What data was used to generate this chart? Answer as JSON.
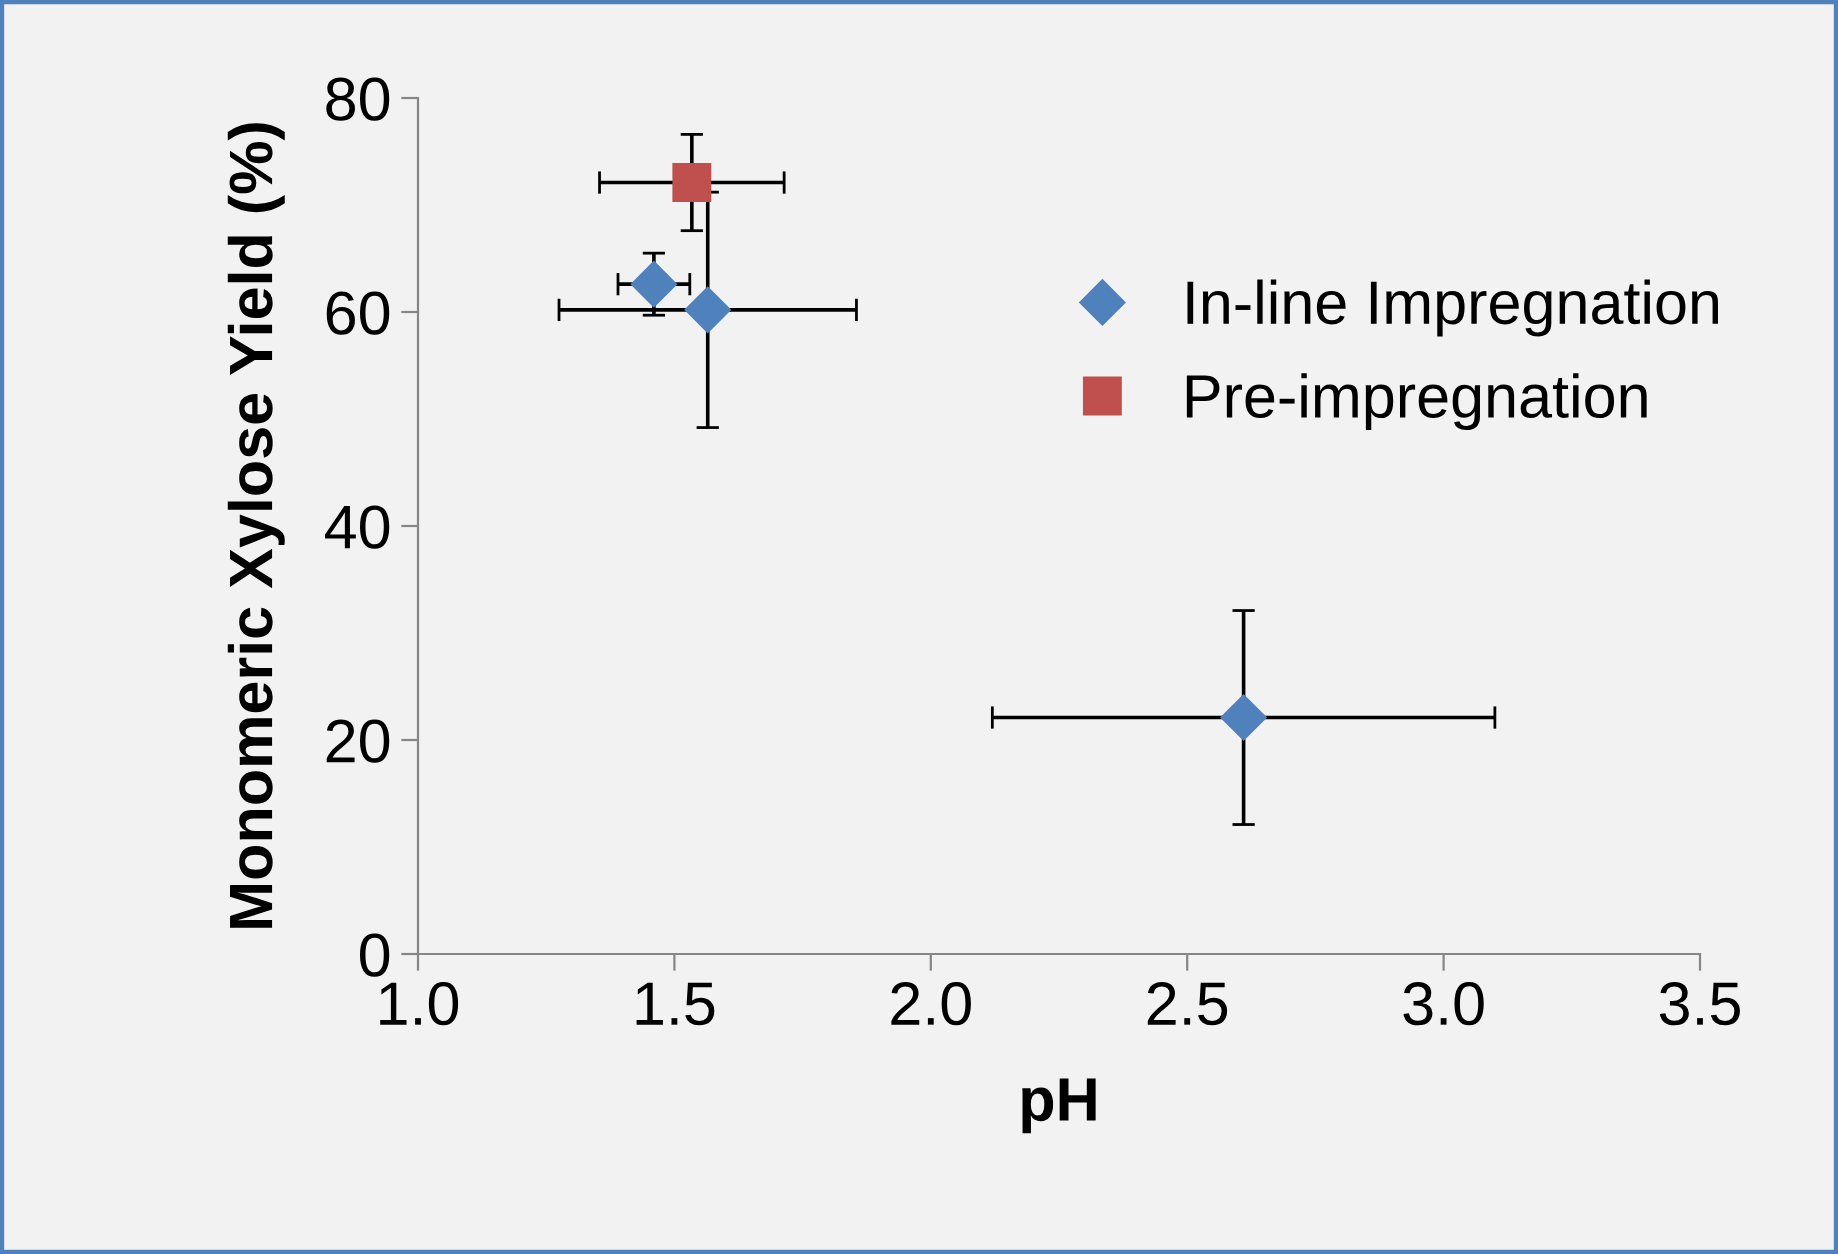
{
  "chart_data": {
    "type": "scatter",
    "xlabel": "pH",
    "ylabel": "Monomeric Xylose Yield (%)",
    "xlim": [
      1.0,
      3.5
    ],
    "xticks": [
      {
        "value": 1.0,
        "label": "1.0"
      },
      {
        "value": 1.5,
        "label": "1.5"
      },
      {
        "value": 2.0,
        "label": "2.0"
      },
      {
        "value": 2.5,
        "label": "2.5"
      },
      {
        "value": 3.0,
        "label": "3.0"
      },
      {
        "value": 3.5,
        "label": "3.5"
      }
    ],
    "ylim": [
      0,
      80
    ],
    "yticks": [
      0,
      20,
      40,
      60,
      80
    ],
    "grid": false,
    "legend": "right",
    "series": [
      {
        "name": "In-line Impregnation",
        "color": "#4f81bd",
        "marker": "diamond",
        "x": [
          1.46,
          1.565,
          2.61
        ],
        "values": [
          62.6,
          60.2,
          22.1
        ],
        "xerrors": [
          0.07,
          0.29,
          0.49
        ],
        "errors": [
          2.9,
          11,
          10
        ]
      },
      {
        "name": "Pre-impregnation",
        "color": "#c0504d",
        "marker": "square",
        "x": [
          1.534
        ],
        "values": [
          72.1
        ],
        "xerrors": [
          0.18
        ],
        "errors": [
          4.5
        ]
      }
    ]
  }
}
